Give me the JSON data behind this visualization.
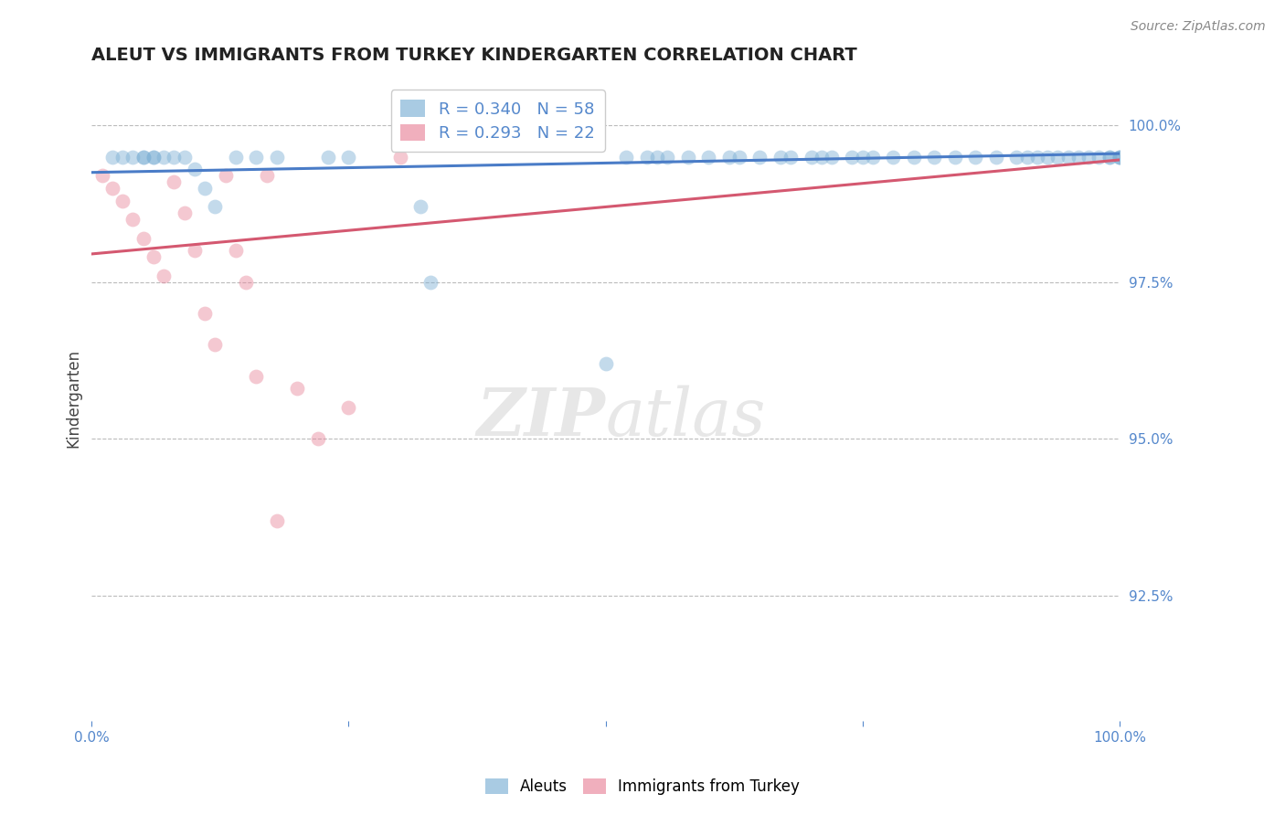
{
  "title": "ALEUT VS IMMIGRANTS FROM TURKEY KINDERGARTEN CORRELATION CHART",
  "source": "Source: ZipAtlas.com",
  "ylabel": "Kindergarten",
  "yticks": [
    100.0,
    97.5,
    95.0,
    92.5
  ],
  "ytick_labels": [
    "100.0%",
    "97.5%",
    "95.0%",
    "92.5%"
  ],
  "ymin": 90.5,
  "ymax": 100.8,
  "xmin": 0.0,
  "xmax": 100.0,
  "blue_R": 0.34,
  "blue_N": 58,
  "pink_R": 0.293,
  "pink_N": 22,
  "blue_color": "#7BAFD4",
  "pink_color": "#E8859A",
  "trend_blue": "#4A7CC7",
  "trend_pink": "#D45870",
  "tick_color": "#5588CC",
  "grid_color": "#BBBBBB",
  "background_color": "#ffffff",
  "title_color": "#222222",
  "ylabel_color": "#444444",
  "watermark_color": "#DDDDDD",
  "source_color": "#888888",
  "blue_x": [
    2,
    3,
    4,
    5,
    5,
    6,
    6,
    7,
    8,
    9,
    10,
    11,
    12,
    14,
    16,
    18,
    23,
    25,
    32,
    33,
    55,
    58,
    60,
    62,
    65,
    68,
    70,
    72,
    74,
    76,
    78,
    80,
    82,
    84,
    86,
    88,
    90,
    91,
    92,
    93,
    94,
    95,
    96,
    97,
    98,
    99,
    99,
    100,
    100,
    100,
    50,
    52,
    54,
    56,
    63,
    67,
    71,
    75
  ],
  "blue_y": [
    99.5,
    99.5,
    99.5,
    99.5,
    99.5,
    99.5,
    99.5,
    99.5,
    99.5,
    99.5,
    99.3,
    99.0,
    98.7,
    99.5,
    99.5,
    99.5,
    99.5,
    99.5,
    98.7,
    97.5,
    99.5,
    99.5,
    99.5,
    99.5,
    99.5,
    99.5,
    99.5,
    99.5,
    99.5,
    99.5,
    99.5,
    99.5,
    99.5,
    99.5,
    99.5,
    99.5,
    99.5,
    99.5,
    99.5,
    99.5,
    99.5,
    99.5,
    99.5,
    99.5,
    99.5,
    99.5,
    99.5,
    99.5,
    99.5,
    99.5,
    96.2,
    99.5,
    99.5,
    99.5,
    99.5,
    99.5,
    99.5,
    99.5
  ],
  "pink_x": [
    1,
    2,
    3,
    4,
    5,
    6,
    7,
    8,
    9,
    10,
    11,
    12,
    13,
    14,
    15,
    16,
    17,
    20,
    25,
    30,
    18,
    22
  ],
  "pink_y": [
    99.2,
    99.0,
    98.8,
    98.5,
    98.2,
    97.9,
    97.6,
    99.1,
    98.6,
    98.0,
    97.0,
    96.5,
    99.2,
    98.0,
    97.5,
    96.0,
    99.2,
    95.8,
    95.5,
    99.5,
    93.7,
    95.0
  ],
  "blue_trend_x": [
    0,
    100
  ],
  "blue_trend_y": [
    99.25,
    99.55
  ],
  "pink_trend_x": [
    0,
    100
  ],
  "pink_trend_y": [
    97.95,
    99.45
  ],
  "marker_size": 130,
  "marker_alpha": 0.45,
  "trend_linewidth": 2.2,
  "title_fontsize": 14,
  "tick_fontsize": 11,
  "ylabel_fontsize": 12,
  "legend_fontsize": 13
}
